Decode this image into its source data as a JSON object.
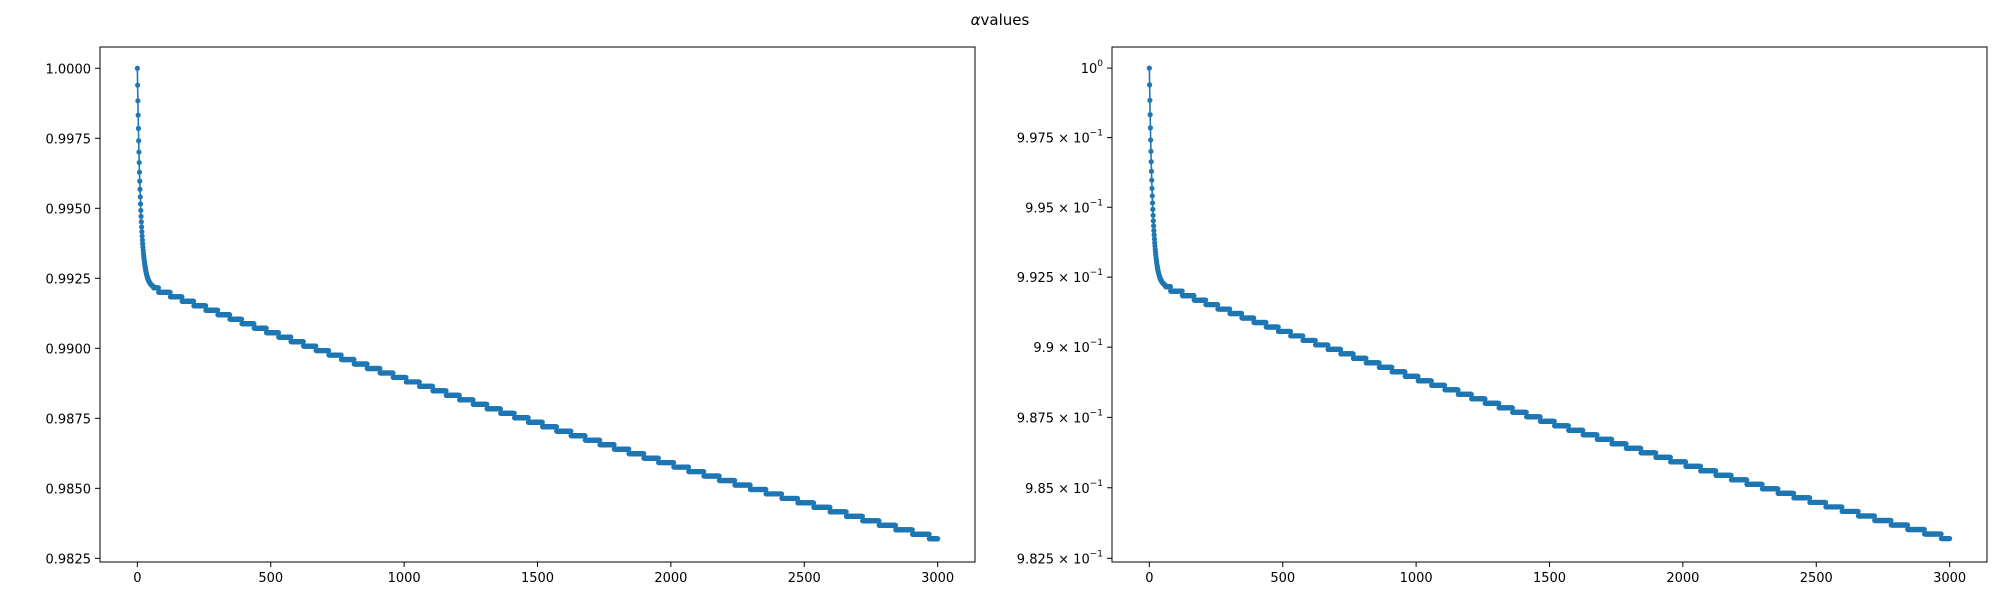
{
  "figure": {
    "title_symbol": "α",
    "title_text": "values"
  },
  "colors": {
    "series": "#1f77b4",
    "axes": "#000000",
    "background": "#ffffff"
  },
  "chart_data": [
    {
      "type": "line",
      "marker": "dot",
      "yscale": "linear",
      "xlim": [
        -140,
        3140
      ],
      "ylim": [
        0.98237,
        1.00076
      ],
      "grid": false,
      "xticks": [
        0,
        500,
        1000,
        1500,
        2000,
        2500,
        3000
      ],
      "xtick_labels": [
        "0",
        "500",
        "1000",
        "1500",
        "2000",
        "2500",
        "3000"
      ],
      "yticks": [
        0.9825,
        0.985,
        0.9875,
        0.99,
        0.9925,
        0.995,
        0.9975,
        1.0
      ],
      "ytick_labels": [
        "0.9825",
        "0.9850",
        "0.9875",
        "0.9900",
        "0.9925",
        "0.9950",
        "0.9975",
        "1.0000"
      ],
      "x_range": [
        0,
        3000
      ],
      "y_start": 1.0,
      "y_end": 0.9832,
      "shape": "steep drop over the first ~60 points to about 0.992, then a slow stepwise decline"
    },
    {
      "type": "line",
      "marker": "dot",
      "yscale": "log",
      "xlim": [
        -140,
        3140
      ],
      "ylim": [
        0.98237,
        1.00076
      ],
      "grid": false,
      "xticks": [
        0,
        500,
        1000,
        1500,
        2000,
        2500,
        3000
      ],
      "xtick_labels": [
        "0",
        "500",
        "1000",
        "1500",
        "2000",
        "2500",
        "3000"
      ],
      "yticks": [
        0.9825,
        0.985,
        0.9875,
        0.99,
        0.9925,
        0.995,
        0.9975,
        1.0
      ],
      "ytick_labels": [
        {
          "base": "9.825",
          "exp": "−1"
        },
        {
          "base": "9.85",
          "exp": "−1"
        },
        {
          "base": "9.875",
          "exp": "−1"
        },
        {
          "base": "9.9",
          "exp": "−1"
        },
        {
          "base": "9.925",
          "exp": "−1"
        },
        {
          "base": "9.95",
          "exp": "−1"
        },
        {
          "base": "9.975",
          "exp": "−1"
        },
        {
          "base": "",
          "exp": "0"
        }
      ],
      "x_range": [
        0,
        3000
      ],
      "y_start": 1.0,
      "y_end": 0.9832,
      "shape": "same series as left panel drawn on a logarithmic y axis"
    }
  ]
}
